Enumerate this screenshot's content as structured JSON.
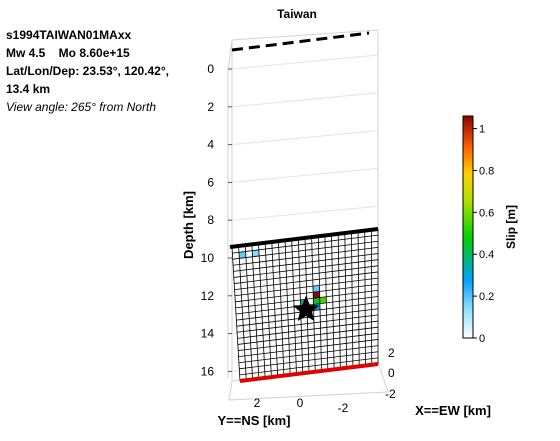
{
  "chart_data": {
    "type": "heatmap",
    "title": "Taiwan",
    "annotation": {
      "event_id": "s1994TAIWAN01MAxx",
      "magnitude_line": "Mw 4.5    Mo 8.60e+15",
      "location_line": "Lat/Lon/Dep: 23.53°, 120.42°,",
      "depth_line": "13.4 km",
      "view_line": "View angle: 265° from North"
    },
    "xlabel": "X==EW [km]",
    "ylabel": "Y==NS [km]",
    "zlabel": "Depth [km]",
    "x_ticks": [
      "2",
      "0",
      "-2"
    ],
    "y_ticks": [
      "2",
      "0",
      "-2"
    ],
    "z_ticks": [
      "0",
      "2",
      "4",
      "6",
      "8",
      "10",
      "12",
      "14",
      "16"
    ],
    "zlim": [
      0,
      16.6
    ],
    "colorbar": {
      "label": "Slip [m]",
      "range": [
        0,
        1.06
      ],
      "ticks": [
        "0",
        "0.2",
        "0.4",
        "0.6",
        "0.8",
        "1"
      ]
    },
    "fault_grid": {
      "rows": 22,
      "cols": 22,
      "top_depth": 9.5,
      "bottom_depth": 16.3
    },
    "slip_cells": [
      {
        "row": 1,
        "col": 3,
        "slip": 0.15
      },
      {
        "row": 1,
        "col": 1,
        "slip": 0.18
      },
      {
        "row": 8,
        "col": 12,
        "slip": 0.18
      },
      {
        "row": 9,
        "col": 12,
        "slip": 1.05
      },
      {
        "row": 10,
        "col": 12,
        "slip": 0.45
      },
      {
        "row": 10,
        "col": 13,
        "slip": 0.55
      },
      {
        "row": 10,
        "col": 10,
        "slip": 0.38
      },
      {
        "row": 11,
        "col": 12,
        "slip": 0.3
      }
    ],
    "hypocenter": {
      "depth": 13.0
    },
    "colors": {
      "surface_trace": "#000000",
      "fault_top": "#000000",
      "fault_bottom": "#e00000",
      "grid": "#000000",
      "box": "#cfcfcf"
    }
  }
}
